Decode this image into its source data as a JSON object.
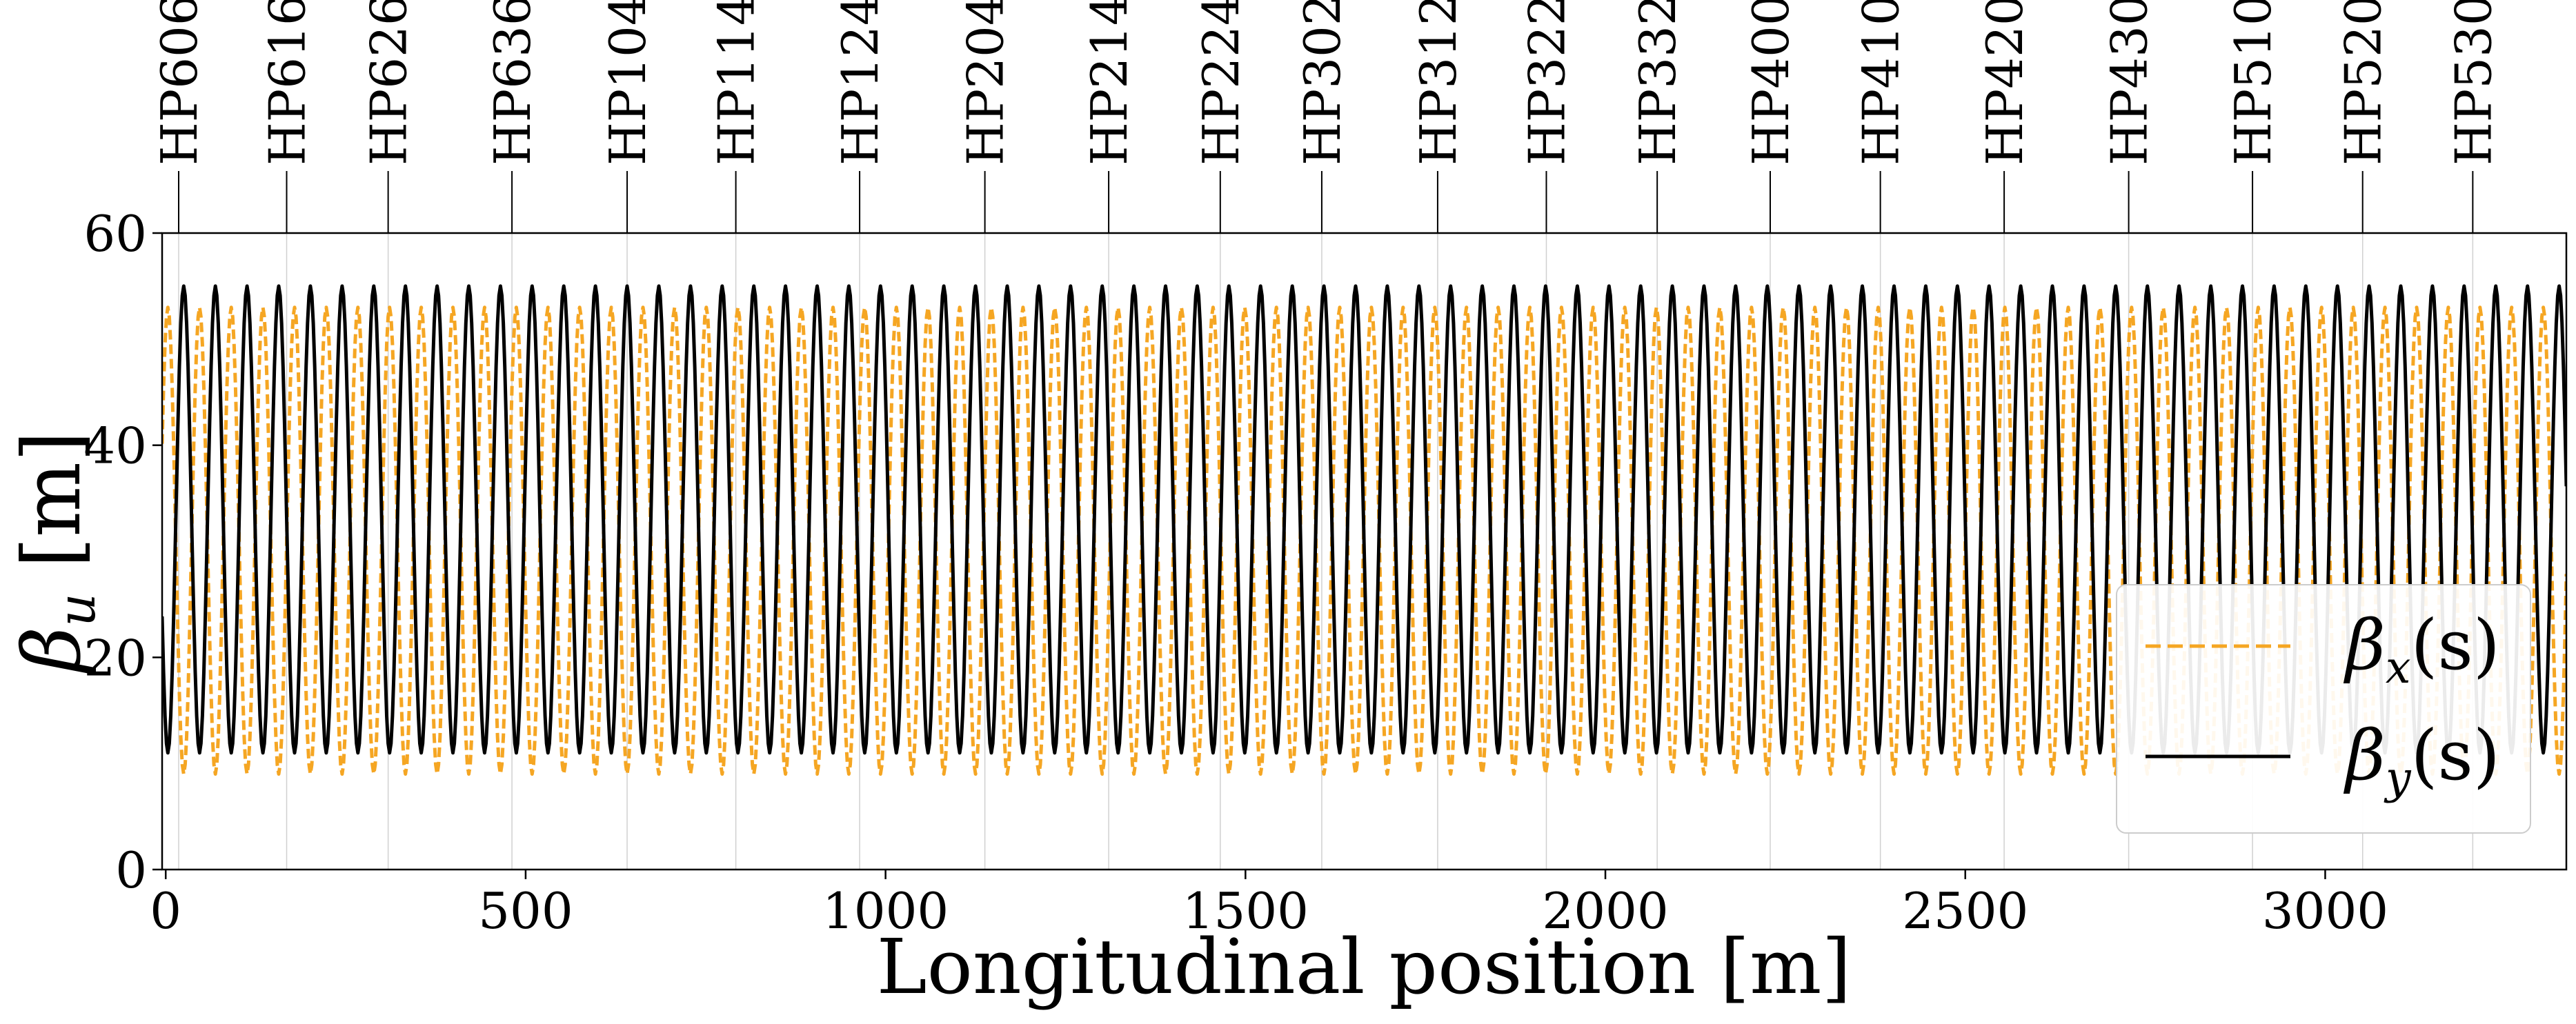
{
  "chart_data": {
    "type": "line",
    "title": "",
    "xlabel": "Longitudinal position [m]",
    "ylabel": "β_u [m]",
    "ylabel_parts": {
      "main": "β",
      "sub": "u",
      "unit": " [m]"
    },
    "xlim": [
      -5,
      3335
    ],
    "ylim": [
      0,
      60
    ],
    "x_ticks": [
      0,
      500,
      1000,
      1500,
      2000,
      2500,
      3000
    ],
    "y_ticks": [
      0,
      20,
      40,
      60
    ],
    "grid": "vertical-lines-at-markers",
    "legend_position": "lower-right",
    "top_markers": [
      {
        "label": "HP606",
        "s": 18
      },
      {
        "label": "HP616",
        "s": 168
      },
      {
        "label": "HP626",
        "s": 309
      },
      {
        "label": "HP636",
        "s": 481
      },
      {
        "label": "HP104",
        "s": 641
      },
      {
        "label": "HP114",
        "s": 792
      },
      {
        "label": "HP124",
        "s": 964
      },
      {
        "label": "HP204",
        "s": 1138
      },
      {
        "label": "HP214",
        "s": 1310
      },
      {
        "label": "HP224",
        "s": 1465
      },
      {
        "label": "HP302",
        "s": 1606
      },
      {
        "label": "HP312",
        "s": 1767
      },
      {
        "label": "HP322",
        "s": 1918
      },
      {
        "label": "HP332",
        "s": 2072
      },
      {
        "label": "HP400",
        "s": 2229
      },
      {
        "label": "HP410",
        "s": 2382
      },
      {
        "label": "HP420",
        "s": 2554
      },
      {
        "label": "HP430",
        "s": 2727
      },
      {
        "label": "HP510",
        "s": 2899
      },
      {
        "label": "HP520",
        "s": 3052
      },
      {
        "label": "HP530",
        "s": 3205
      }
    ],
    "series": [
      {
        "name": "β_x(s)",
        "legend": {
          "main": "β",
          "sub": "x",
          "arg": "(s)"
        },
        "color": "#f5a623",
        "dash": "dashed",
        "period": 44,
        "peak_at": 3,
        "max": 53,
        "min": 9
      },
      {
        "name": "β_y(s)",
        "legend": {
          "main": "β",
          "sub": "y",
          "arg": "(s)"
        },
        "color": "#000000",
        "dash": "solid",
        "period": 44,
        "peak_at": 25,
        "max": 55,
        "min": 11
      }
    ]
  }
}
